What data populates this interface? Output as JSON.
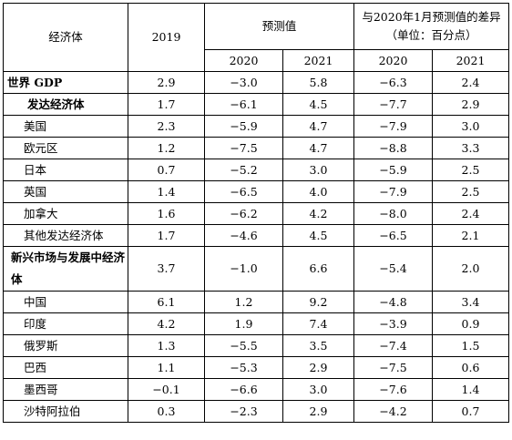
{
  "header": {
    "economy": "经济体",
    "year_2019": "2019",
    "forecast": "预测值",
    "diff": "与2020年1月预测值的差异（单位：百分点）",
    "sub_2020": "2020",
    "sub_2021": "2021",
    "diff_2020": "2020",
    "diff_2021": "2021"
  },
  "rows": [
    {
      "name": "世界 GDP",
      "v2019": "2.9",
      "f2020": "−3.0",
      "f2021": "5.8",
      "d2020": "−6.3",
      "d2021": "2.4"
    },
    {
      "name": "发达经济体",
      "v2019": "1.7",
      "f2020": "−6.1",
      "f2021": "4.5",
      "d2020": "−7.7",
      "d2021": "2.9"
    },
    {
      "name": "美国",
      "v2019": "2.3",
      "f2020": "−5.9",
      "f2021": "4.7",
      "d2020": "−7.9",
      "d2021": "3.0"
    },
    {
      "name": "欧元区",
      "v2019": "1.2",
      "f2020": "−7.5",
      "f2021": "4.7",
      "d2020": "−8.8",
      "d2021": "3.3"
    },
    {
      "name": "日本",
      "v2019": "0.7",
      "f2020": "−5.2",
      "f2021": "3.0",
      "d2020": "−5.9",
      "d2021": "2.5"
    },
    {
      "name": "英国",
      "v2019": "1.4",
      "f2020": "−6.5",
      "f2021": "4.0",
      "d2020": "−7.9",
      "d2021": "2.5"
    },
    {
      "name": "加拿大",
      "v2019": "1.6",
      "f2020": "−6.2",
      "f2021": "4.2",
      "d2020": "−8.0",
      "d2021": "2.4"
    },
    {
      "name": "其他发达经济体",
      "v2019": "1.7",
      "f2020": "−4.6",
      "f2021": "4.5",
      "d2020": "−6.5",
      "d2021": "2.1"
    },
    {
      "name": "新兴市场与发展中经济体",
      "v2019": "3.7",
      "f2020": "−1.0",
      "f2021": "6.6",
      "d2020": "−5.4",
      "d2021": "2.0"
    },
    {
      "name": "中国",
      "v2019": "6.1",
      "f2020": "1.2",
      "f2021": "9.2",
      "d2020": "−4.8",
      "d2021": "3.4"
    },
    {
      "name": "印度",
      "v2019": "4.2",
      "f2020": "1.9",
      "f2021": "7.4",
      "d2020": "−3.9",
      "d2021": "0.9"
    },
    {
      "name": "俄罗斯",
      "v2019": "1.3",
      "f2020": "−5.5",
      "f2021": "3.5",
      "d2020": "−7.4",
      "d2021": "1.5"
    },
    {
      "name": "巴西",
      "v2019": "1.1",
      "f2020": "−5.3",
      "f2021": "2.9",
      "d2020": "−7.5",
      "d2021": "0.6"
    },
    {
      "name": "墨西哥",
      "v2019": "−0.1",
      "f2020": "−6.6",
      "f2021": "3.0",
      "d2020": "−7.6",
      "d2021": "1.4"
    },
    {
      "name": "沙特阿拉伯",
      "v2019": "0.3",
      "f2020": "−2.3",
      "f2021": "2.9",
      "d2020": "−4.2",
      "d2021": "0.7"
    }
  ]
}
